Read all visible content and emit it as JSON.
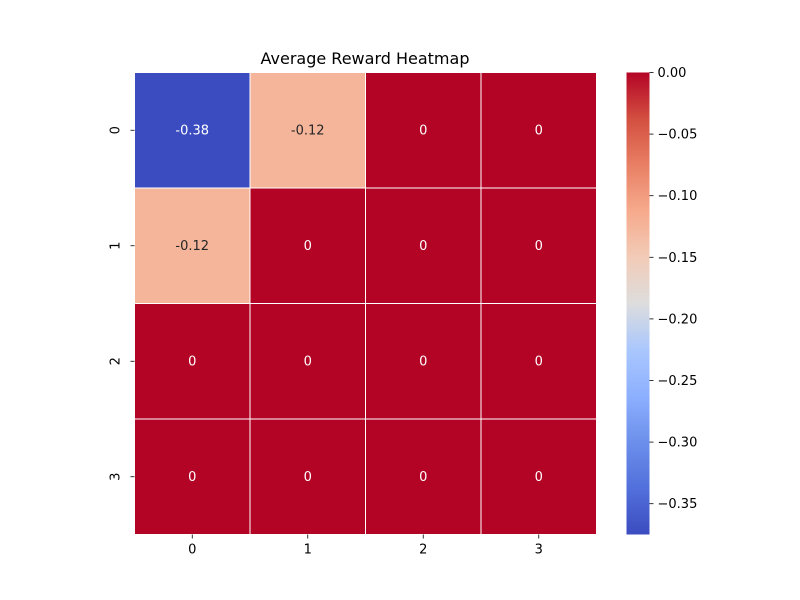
{
  "chart_data": {
    "type": "heatmap",
    "title": "Average Reward Heatmap",
    "xlabel": "",
    "ylabel": "",
    "x_categories": [
      "0",
      "1",
      "2",
      "3"
    ],
    "y_categories": [
      "0",
      "1",
      "2",
      "3"
    ],
    "values": [
      [
        -0.375,
        -0.125,
        0,
        0
      ],
      [
        -0.125,
        0,
        0,
        0
      ],
      [
        0,
        0,
        0,
        0
      ],
      [
        0,
        0,
        0,
        0
      ]
    ],
    "annotations": [
      [
        "-0.38",
        "-0.12",
        "0",
        "0"
      ],
      [
        "-0.12",
        "0",
        "0",
        "0"
      ],
      [
        "0",
        "0",
        "0",
        "0"
      ],
      [
        "0",
        "0",
        "0",
        "0"
      ]
    ],
    "colormap": "coolwarm",
    "vmin": -0.375,
    "vmax": 0.0,
    "colorbar": {
      "ticks": [
        0.0,
        -0.05,
        -0.1,
        -0.15,
        -0.2,
        -0.25,
        -0.3,
        -0.35
      ],
      "tick_labels": [
        "0.00",
        "−0.05",
        "−0.10",
        "−0.15",
        "−0.20",
        "−0.25",
        "−0.30",
        "−0.35"
      ]
    },
    "colors": {
      "min": "#3b4cc0",
      "max": "#b40426",
      "cell_border": "#ffffff"
    }
  }
}
